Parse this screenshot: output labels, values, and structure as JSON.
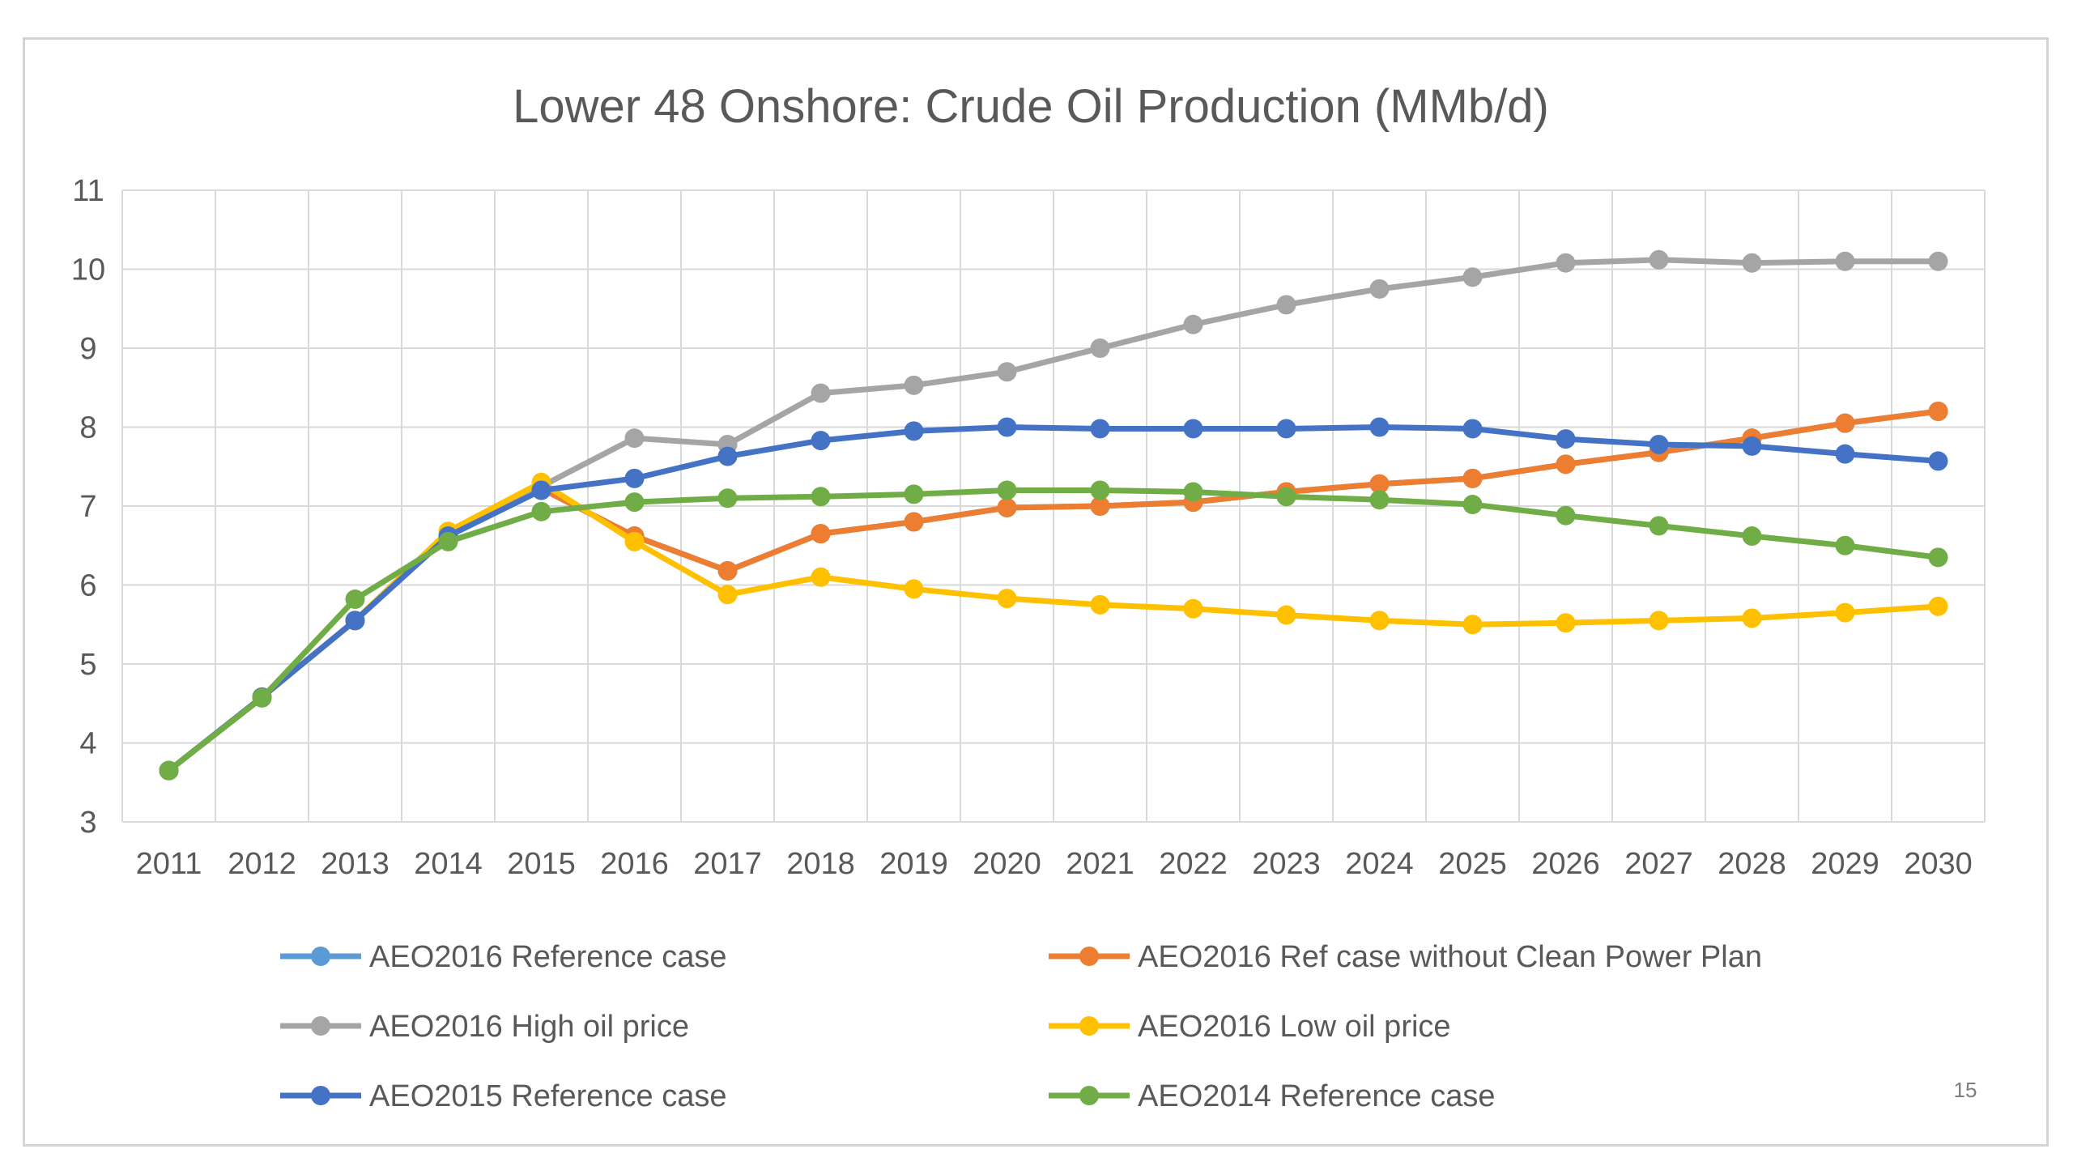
{
  "chart_data": {
    "type": "line",
    "title": "Lower 48 Onshore: Crude Oil Production (MMb/d)",
    "xlabel": "",
    "ylabel": "",
    "ylim": [
      3,
      11
    ],
    "yticks": [
      3,
      4,
      5,
      6,
      7,
      8,
      9,
      10,
      11
    ],
    "grid": true,
    "legend_position": "bottom",
    "x": [
      "2011",
      "2012",
      "2013",
      "2014",
      "2015",
      "2016",
      "2017",
      "2018",
      "2019",
      "2020",
      "2021",
      "2022",
      "2023",
      "2024",
      "2025",
      "2026",
      "2027",
      "2028",
      "2029",
      "2030"
    ],
    "series": [
      {
        "name": "AEO2016 Reference case",
        "color": "#5b9bd5",
        "values": [
          3.65,
          4.58,
          5.55,
          6.62,
          7.22,
          6.62,
          6.18,
          6.65,
          6.8,
          6.98,
          7.0,
          7.05,
          7.18,
          7.28,
          7.35,
          7.53,
          7.68,
          7.86,
          8.05,
          8.2
        ]
      },
      {
        "name": "AEO2016 Ref case without Clean Power Plan",
        "color": "#ed7d31",
        "values": [
          3.65,
          4.58,
          5.55,
          6.62,
          7.22,
          6.62,
          6.18,
          6.65,
          6.8,
          6.98,
          7.0,
          7.05,
          7.18,
          7.28,
          7.35,
          7.53,
          7.68,
          7.86,
          8.05,
          8.2
        ]
      },
      {
        "name": "AEO2016 High oil price",
        "color": "#a5a5a5",
        "values": [
          3.65,
          4.58,
          5.55,
          6.62,
          7.25,
          7.86,
          7.78,
          8.43,
          8.53,
          8.7,
          9.0,
          9.3,
          9.55,
          9.75,
          9.9,
          10.08,
          10.12,
          10.08,
          10.1,
          10.1
        ]
      },
      {
        "name": "AEO2016 Low oil price",
        "color": "#ffc000",
        "values": [
          3.65,
          4.58,
          5.55,
          6.68,
          7.3,
          6.55,
          5.88,
          6.1,
          5.95,
          5.83,
          5.75,
          5.7,
          5.62,
          5.55,
          5.5,
          5.52,
          5.55,
          5.58,
          5.65,
          5.73
        ]
      },
      {
        "name": "AEO2015 Reference case",
        "color": "#4472c4",
        "values": [
          3.65,
          4.58,
          5.55,
          6.62,
          7.2,
          7.35,
          7.63,
          7.83,
          7.95,
          8.0,
          7.98,
          7.98,
          7.98,
          8.0,
          7.98,
          7.85,
          7.78,
          7.76,
          7.66,
          7.57
        ]
      },
      {
        "name": "AEO2014 Reference case",
        "color": "#70ad47",
        "values": [
          3.65,
          4.57,
          5.82,
          6.55,
          6.93,
          7.05,
          7.1,
          7.12,
          7.15,
          7.2,
          7.2,
          7.18,
          7.12,
          7.08,
          7.02,
          6.88,
          6.75,
          6.62,
          6.5,
          6.35
        ]
      }
    ]
  },
  "page_number": "15"
}
